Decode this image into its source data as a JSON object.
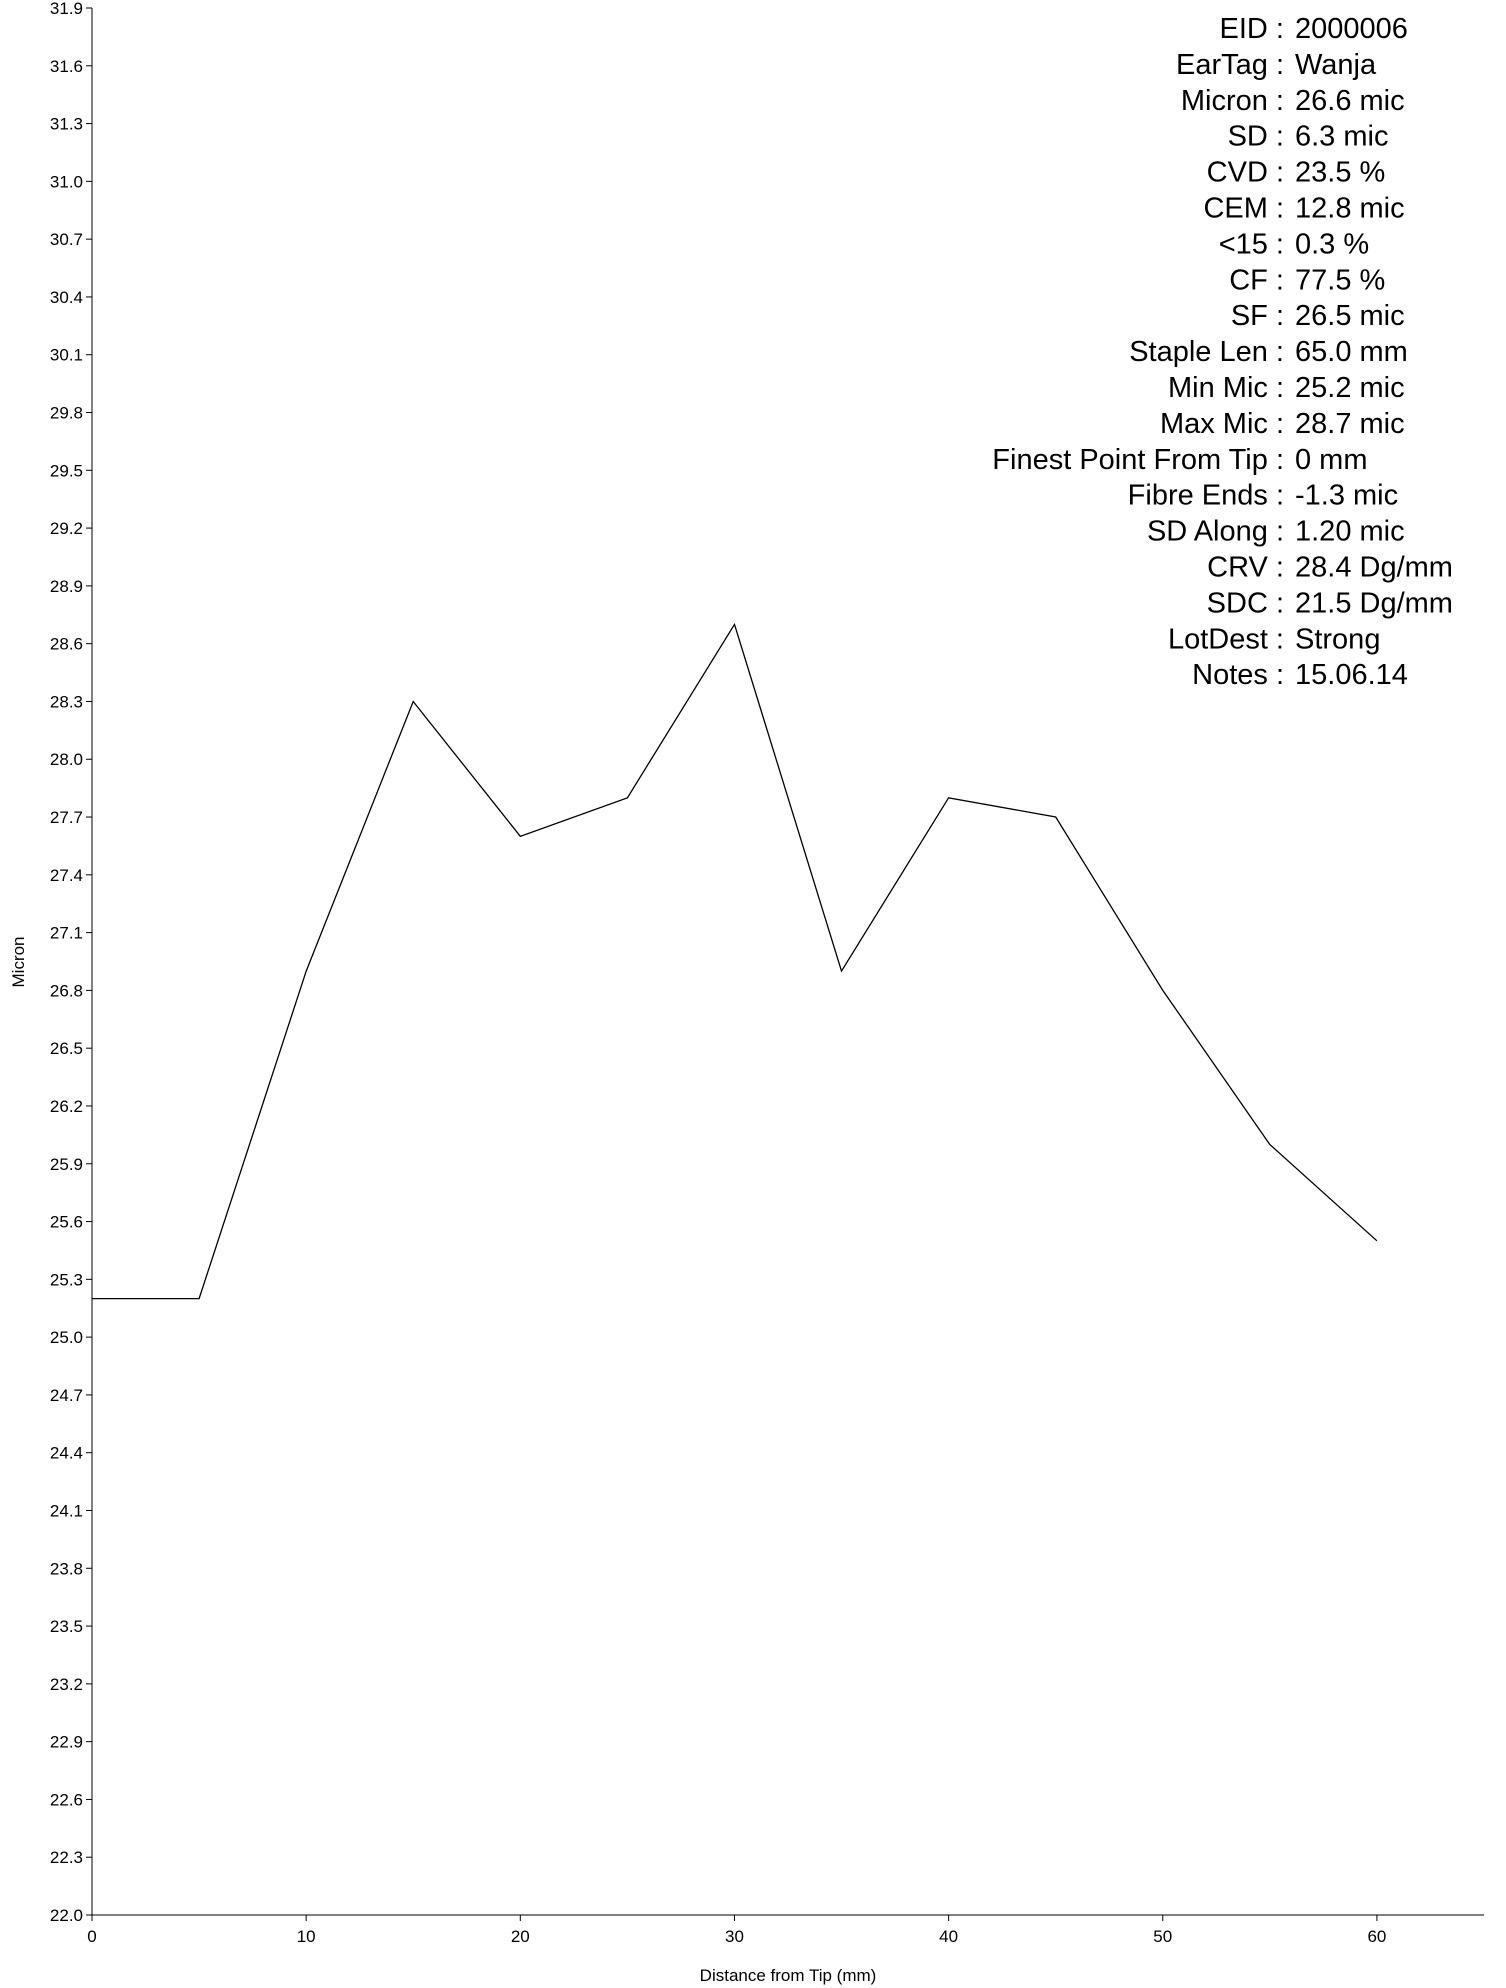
{
  "chart_data": {
    "type": "line",
    "title": "",
    "xlabel": "Distance from Tip (mm)",
    "ylabel": "Micron",
    "xlim": [
      0,
      65
    ],
    "ylim": [
      22.0,
      31.9
    ],
    "x_ticks": [
      0,
      10,
      20,
      30,
      40,
      50,
      60
    ],
    "y_ticks": [
      22.0,
      22.3,
      22.6,
      22.9,
      23.2,
      23.5,
      23.8,
      24.1,
      24.4,
      24.7,
      25.0,
      25.3,
      25.6,
      25.9,
      26.2,
      26.5,
      26.8,
      27.1,
      27.4,
      27.7,
      28.0,
      28.3,
      28.6,
      28.9,
      29.2,
      29.5,
      29.8,
      30.1,
      30.4,
      30.7,
      31.0,
      31.3,
      31.6,
      31.9
    ],
    "grid": false,
    "line_color": "#000000",
    "series": [
      {
        "x": [
          0,
          5,
          10,
          15,
          20,
          25,
          30,
          35,
          40,
          45,
          50,
          55,
          60
        ],
        "values": [
          25.2,
          25.2,
          26.9,
          28.3,
          27.6,
          27.8,
          28.7,
          26.9,
          27.8,
          27.7,
          26.8,
          26.0,
          25.5
        ]
      }
    ]
  },
  "stats": [
    {
      "label": "EID :",
      "value": "2000006"
    },
    {
      "label": "EarTag :",
      "value": "Wanja"
    },
    {
      "label": "Micron :",
      "value": "26.6 mic"
    },
    {
      "label": "SD :",
      "value": "6.3 mic"
    },
    {
      "label": "CVD :",
      "value": "23.5 %"
    },
    {
      "label": "CEM :",
      "value": "12.8 mic"
    },
    {
      "label": "<15 :",
      "value": "0.3 %"
    },
    {
      "label": "CF :",
      "value": "77.5 %"
    },
    {
      "label": "SF :",
      "value": "26.5 mic"
    },
    {
      "label": "Staple Len :",
      "value": "65.0 mm"
    },
    {
      "label": "Min Mic :",
      "value": "25.2 mic"
    },
    {
      "label": "Max Mic :",
      "value": "28.7 mic"
    },
    {
      "label": "Finest Point From Tip :",
      "value": "0 mm"
    },
    {
      "label": "Fibre Ends :",
      "value": "-1.3 mic"
    },
    {
      "label": "SD Along :",
      "value": "1.20 mic"
    },
    {
      "label": "CRV :",
      "value": "28.4 Dg/mm"
    },
    {
      "label": "SDC :",
      "value": "21.5 Dg/mm"
    },
    {
      "label": "LotDest :",
      "value": "Strong"
    },
    {
      "label": "Notes :",
      "value": "15.06.14"
    }
  ]
}
